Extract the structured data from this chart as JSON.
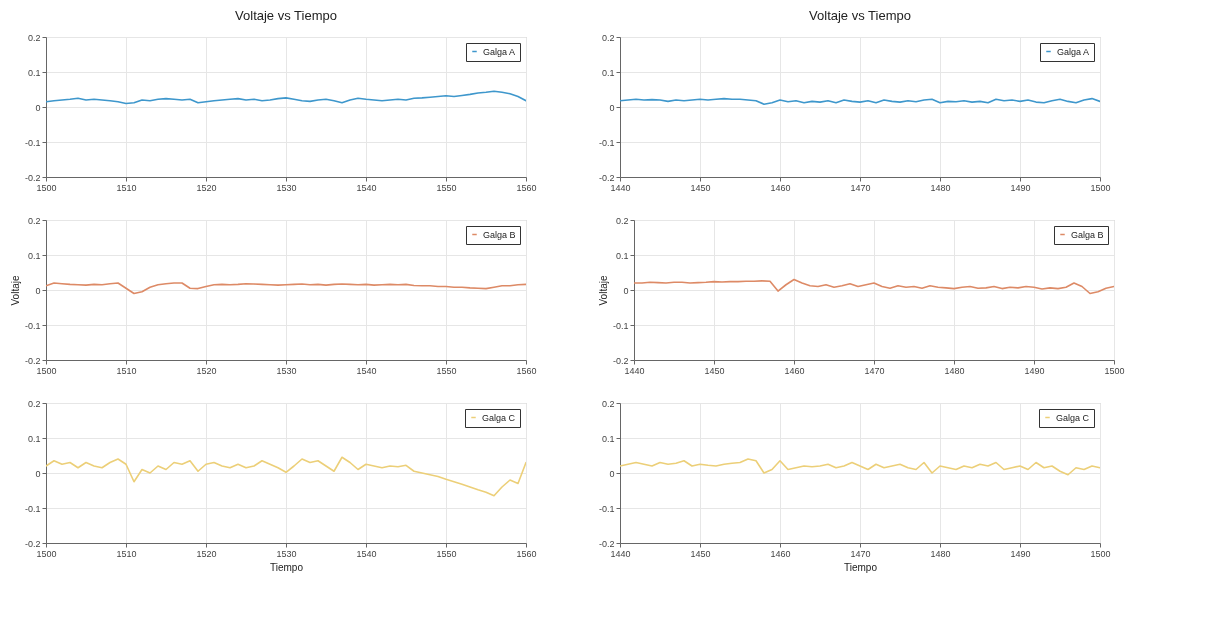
{
  "chart_data": [
    {
      "type": "line",
      "title": "Voltaje vs Tiempo",
      "x": [
        1500,
        1501,
        1502,
        1503,
        1504,
        1505,
        1506,
        1507,
        1508,
        1509,
        1510,
        1511,
        1512,
        1513,
        1514,
        1515,
        1516,
        1517,
        1518,
        1519,
        1520,
        1521,
        1522,
        1523,
        1524,
        1525,
        1526,
        1527,
        1528,
        1529,
        1530,
        1531,
        1532,
        1533,
        1534,
        1535,
        1536,
        1537,
        1538,
        1539,
        1540,
        1541,
        1542,
        1543,
        1544,
        1545,
        1546,
        1547,
        1548,
        1549,
        1550,
        1551,
        1552,
        1553,
        1554,
        1555,
        1556,
        1557,
        1558,
        1559,
        1560
      ],
      "xlim": [
        1500,
        1560
      ],
      "xticks": [
        1500,
        1510,
        1520,
        1530,
        1540,
        1550,
        1560
      ],
      "ylim": [
        -0.2,
        0.2
      ],
      "yticks": [
        -0.2,
        -0.1,
        0,
        0.1,
        0.2
      ],
      "grid": true,
      "legend": "top right",
      "series": [
        {
          "name": "Galga A",
          "color": "#3e97cc",
          "values": [
            0.015,
            0.018,
            0.02,
            0.022,
            0.025,
            0.02,
            0.022,
            0.02,
            0.018,
            0.015,
            0.01,
            0.012,
            0.02,
            0.018,
            0.022,
            0.024,
            0.022,
            0.02,
            0.022,
            0.012,
            0.015,
            0.018,
            0.02,
            0.022,
            0.024,
            0.02,
            0.022,
            0.018,
            0.02,
            0.024,
            0.026,
            0.022,
            0.018,
            0.016,
            0.02,
            0.022,
            0.018,
            0.012,
            0.02,
            0.025,
            0.022,
            0.02,
            0.018,
            0.02,
            0.022,
            0.02,
            0.025,
            0.026,
            0.028,
            0.03,
            0.032,
            0.03,
            0.033,
            0.036,
            0.04,
            0.042,
            0.045,
            0.042,
            0.038,
            0.03,
            0.018
          ]
        }
      ]
    },
    {
      "type": "line",
      "title": "Voltaje vs Tiempo",
      "x": [
        1440,
        1441,
        1442,
        1443,
        1444,
        1445,
        1446,
        1447,
        1448,
        1449,
        1450,
        1451,
        1452,
        1453,
        1454,
        1455,
        1456,
        1457,
        1458,
        1459,
        1460,
        1461,
        1462,
        1463,
        1464,
        1465,
        1466,
        1467,
        1468,
        1469,
        1470,
        1471,
        1472,
        1473,
        1474,
        1475,
        1476,
        1477,
        1478,
        1479,
        1480,
        1481,
        1482,
        1483,
        1484,
        1485,
        1486,
        1487,
        1488,
        1489,
        1490,
        1491,
        1492,
        1493,
        1494,
        1495,
        1496,
        1497,
        1498,
        1499,
        1500
      ],
      "xlim": [
        1440,
        1500
      ],
      "xticks": [
        1440,
        1450,
        1460,
        1470,
        1480,
        1490,
        1500
      ],
      "ylim": [
        -0.2,
        0.2
      ],
      "yticks": [
        -0.2,
        -0.1,
        0,
        0.1,
        0.2
      ],
      "grid": true,
      "legend": "top right",
      "series": [
        {
          "name": "Galga A",
          "color": "#3e97cc",
          "values": [
            0.018,
            0.02,
            0.022,
            0.02,
            0.021,
            0.02,
            0.016,
            0.02,
            0.018,
            0.02,
            0.022,
            0.02,
            0.022,
            0.024,
            0.022,
            0.022,
            0.02,
            0.018,
            0.008,
            0.012,
            0.02,
            0.015,
            0.018,
            0.012,
            0.016,
            0.014,
            0.018,
            0.012,
            0.02,
            0.016,
            0.014,
            0.018,
            0.012,
            0.02,
            0.016,
            0.014,
            0.018,
            0.015,
            0.02,
            0.022,
            0.012,
            0.016,
            0.015,
            0.018,
            0.014,
            0.016,
            0.012,
            0.022,
            0.018,
            0.02,
            0.016,
            0.02,
            0.014,
            0.012,
            0.018,
            0.022,
            0.016,
            0.012,
            0.02,
            0.024,
            0.016
          ]
        }
      ]
    },
    {
      "type": "line",
      "ylabel": "Voltaje",
      "x": [
        1500,
        1501,
        1502,
        1503,
        1504,
        1505,
        1506,
        1507,
        1508,
        1509,
        1510,
        1511,
        1512,
        1513,
        1514,
        1515,
        1516,
        1517,
        1518,
        1519,
        1520,
        1521,
        1522,
        1523,
        1524,
        1525,
        1526,
        1527,
        1528,
        1529,
        1530,
        1531,
        1532,
        1533,
        1534,
        1535,
        1536,
        1537,
        1538,
        1539,
        1540,
        1541,
        1542,
        1543,
        1544,
        1545,
        1546,
        1547,
        1548,
        1549,
        1550,
        1551,
        1552,
        1553,
        1554,
        1555,
        1556,
        1557,
        1558,
        1559,
        1560
      ],
      "xlim": [
        1500,
        1560
      ],
      "xticks": [
        1500,
        1510,
        1520,
        1530,
        1540,
        1550,
        1560
      ],
      "ylim": [
        -0.2,
        0.2
      ],
      "yticks": [
        -0.2,
        -0.1,
        0,
        0.1,
        0.2
      ],
      "grid": true,
      "legend": "top right",
      "series": [
        {
          "name": "Galga B",
          "color": "#dd8a66",
          "values": [
            0.012,
            0.02,
            0.018,
            0.016,
            0.015,
            0.014,
            0.016,
            0.015,
            0.018,
            0.02,
            0.005,
            -0.01,
            -0.005,
            0.008,
            0.015,
            0.018,
            0.02,
            0.02,
            0.005,
            0.004,
            0.01,
            0.015,
            0.016,
            0.015,
            0.016,
            0.018,
            0.017,
            0.016,
            0.015,
            0.014,
            0.015,
            0.016,
            0.017,
            0.015,
            0.016,
            0.014,
            0.016,
            0.017,
            0.016,
            0.015,
            0.016,
            0.014,
            0.015,
            0.016,
            0.015,
            0.016,
            0.013,
            0.012,
            0.012,
            0.01,
            0.01,
            0.008,
            0.008,
            0.006,
            0.005,
            0.004,
            0.008,
            0.012,
            0.012,
            0.015,
            0.016
          ]
        }
      ]
    },
    {
      "type": "line",
      "ylabel": "Voltaje",
      "x": [
        1440,
        1441,
        1442,
        1443,
        1444,
        1445,
        1446,
        1447,
        1448,
        1449,
        1450,
        1451,
        1452,
        1453,
        1454,
        1455,
        1456,
        1457,
        1458,
        1459,
        1460,
        1461,
        1462,
        1463,
        1464,
        1465,
        1466,
        1467,
        1468,
        1469,
        1470,
        1471,
        1472,
        1473,
        1474,
        1475,
        1476,
        1477,
        1478,
        1479,
        1480,
        1481,
        1482,
        1483,
        1484,
        1485,
        1486,
        1487,
        1488,
        1489,
        1490,
        1491,
        1492,
        1493,
        1494,
        1495,
        1496,
        1497,
        1498,
        1499,
        1500
      ],
      "xlim": [
        1440,
        1500
      ],
      "xticks": [
        1440,
        1450,
        1460,
        1470,
        1480,
        1490,
        1500
      ],
      "ylim": [
        -0.2,
        0.2
      ],
      "yticks": [
        -0.2,
        -0.1,
        0,
        0.1,
        0.2
      ],
      "grid": true,
      "legend": "top right",
      "series": [
        {
          "name": "Galga B",
          "color": "#dd8a66",
          "values": [
            0.02,
            0.02,
            0.022,
            0.021,
            0.02,
            0.022,
            0.022,
            0.02,
            0.021,
            0.022,
            0.024,
            0.023,
            0.024,
            0.024,
            0.025,
            0.025,
            0.026,
            0.025,
            -0.003,
            0.015,
            0.03,
            0.02,
            0.012,
            0.01,
            0.015,
            0.008,
            0.012,
            0.018,
            0.01,
            0.015,
            0.02,
            0.01,
            0.005,
            0.012,
            0.008,
            0.01,
            0.005,
            0.012,
            0.008,
            0.006,
            0.004,
            0.008,
            0.01,
            0.005,
            0.006,
            0.01,
            0.004,
            0.008,
            0.006,
            0.01,
            0.008,
            0.003,
            0.006,
            0.004,
            0.008,
            0.02,
            0.01,
            -0.01,
            -0.005,
            0.005,
            0.01
          ]
        }
      ]
    },
    {
      "type": "line",
      "xlabel": "Tiempo",
      "x": [
        1500,
        1501,
        1502,
        1503,
        1504,
        1505,
        1506,
        1507,
        1508,
        1509,
        1510,
        1511,
        1512,
        1513,
        1514,
        1515,
        1516,
        1517,
        1518,
        1519,
        1520,
        1521,
        1522,
        1523,
        1524,
        1525,
        1526,
        1527,
        1528,
        1529,
        1530,
        1531,
        1532,
        1533,
        1534,
        1535,
        1536,
        1537,
        1538,
        1539,
        1540,
        1541,
        1542,
        1543,
        1544,
        1545,
        1546,
        1547,
        1548,
        1549,
        1550,
        1551,
        1552,
        1553,
        1554,
        1555,
        1556,
        1557,
        1558,
        1559,
        1560
      ],
      "xlim": [
        1500,
        1560
      ],
      "xticks": [
        1500,
        1510,
        1520,
        1530,
        1540,
        1550,
        1560
      ],
      "ylim": [
        -0.2,
        0.2
      ],
      "yticks": [
        -0.2,
        -0.1,
        0,
        0.1,
        0.2
      ],
      "grid": true,
      "legend": "top right",
      "series": [
        {
          "name": "Galga C",
          "color": "#eccf78",
          "values": [
            0.02,
            0.035,
            0.025,
            0.03,
            0.015,
            0.03,
            0.02,
            0.015,
            0.03,
            0.04,
            0.025,
            -0.025,
            0.01,
            0.0,
            0.02,
            0.01,
            0.03,
            0.025,
            0.035,
            0.005,
            0.025,
            0.03,
            0.02,
            0.015,
            0.025,
            0.015,
            0.02,
            0.035,
            0.025,
            0.015,
            0.002,
            0.02,
            0.04,
            0.03,
            0.035,
            0.02,
            0.005,
            0.045,
            0.03,
            0.01,
            0.025,
            0.02,
            0.015,
            0.02,
            0.018,
            0.022,
            0.005,
            0.0,
            -0.005,
            -0.01,
            -0.018,
            -0.025,
            -0.032,
            -0.04,
            -0.048,
            -0.055,
            -0.065,
            -0.04,
            -0.02,
            -0.03,
            0.03
          ]
        }
      ]
    },
    {
      "type": "line",
      "xlabel": "Tiempo",
      "x": [
        1440,
        1441,
        1442,
        1443,
        1444,
        1445,
        1446,
        1447,
        1448,
        1449,
        1450,
        1451,
        1452,
        1453,
        1454,
        1455,
        1456,
        1457,
        1458,
        1459,
        1460,
        1461,
        1462,
        1463,
        1464,
        1465,
        1466,
        1467,
        1468,
        1469,
        1470,
        1471,
        1472,
        1473,
        1474,
        1475,
        1476,
        1477,
        1478,
        1479,
        1480,
        1481,
        1482,
        1483,
        1484,
        1485,
        1486,
        1487,
        1488,
        1489,
        1490,
        1491,
        1492,
        1493,
        1494,
        1495,
        1496,
        1497,
        1498,
        1499,
        1500
      ],
      "xlim": [
        1440,
        1500
      ],
      "xticks": [
        1440,
        1450,
        1460,
        1470,
        1480,
        1490,
        1500
      ],
      "ylim": [
        -0.2,
        0.2
      ],
      "yticks": [
        -0.2,
        -0.1,
        0,
        0.1,
        0.2
      ],
      "grid": true,
      "legend": "top right",
      "series": [
        {
          "name": "Galga C",
          "color": "#eccf78",
          "values": [
            0.02,
            0.025,
            0.03,
            0.025,
            0.02,
            0.03,
            0.025,
            0.028,
            0.035,
            0.02,
            0.025,
            0.022,
            0.02,
            0.025,
            0.028,
            0.03,
            0.04,
            0.035,
            0.0,
            0.01,
            0.035,
            0.01,
            0.015,
            0.02,
            0.018,
            0.02,
            0.025,
            0.015,
            0.02,
            0.03,
            0.02,
            0.01,
            0.025,
            0.015,
            0.02,
            0.025,
            0.015,
            0.01,
            0.03,
            0.0,
            0.02,
            0.015,
            0.01,
            0.02,
            0.015,
            0.025,
            0.02,
            0.03,
            0.01,
            0.015,
            0.02,
            0.01,
            0.03,
            0.015,
            0.02,
            0.005,
            -0.005,
            0.015,
            0.01,
            0.02,
            0.015
          ]
        }
      ]
    }
  ]
}
